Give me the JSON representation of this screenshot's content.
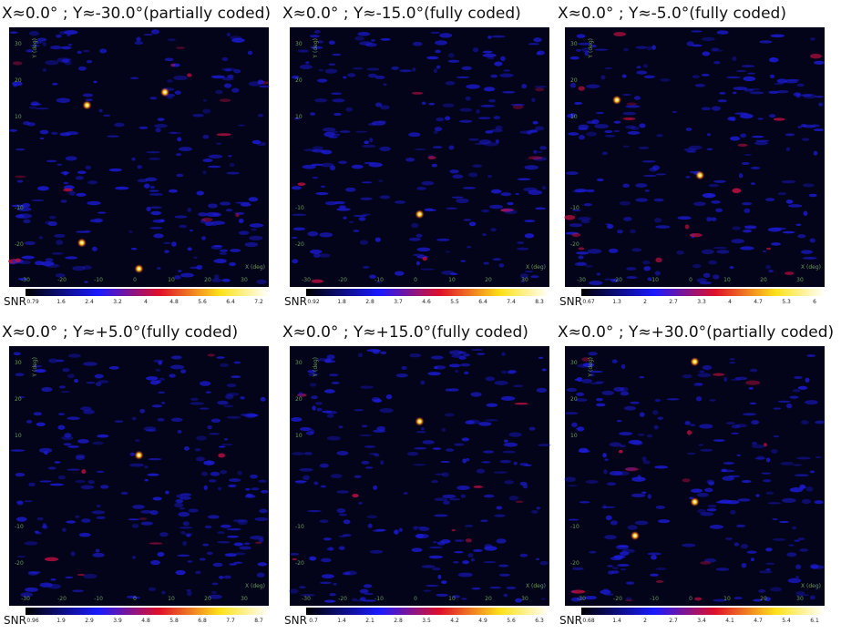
{
  "panels": [
    {
      "title": "X≈0.0° ; Y≈-30.0°(partially coded)",
      "colorbar": [
        "0.79",
        "1.6",
        "2.4",
        "3.2",
        "4",
        "4.8",
        "5.6",
        "6.4",
        "7.2"
      ]
    },
    {
      "title": "X≈0.0° ; Y≈-15.0°(fully coded)",
      "colorbar": [
        "0.92",
        "1.8",
        "2.8",
        "3.7",
        "4.6",
        "5.5",
        "6.4",
        "7.4",
        "8.3"
      ]
    },
    {
      "title": "X≈0.0° ; Y≈-5.0°(fully coded)",
      "colorbar": [
        "0.67",
        "1.3",
        "2",
        "2.7",
        "3.3",
        "4",
        "4.7",
        "5.3",
        "6"
      ]
    },
    {
      "title": "X≈0.0° ; Y≈+5.0°(fully coded)",
      "colorbar": [
        "0.96",
        "1.9",
        "2.9",
        "3.9",
        "4.8",
        "5.8",
        "6.8",
        "7.7",
        "8.7"
      ]
    },
    {
      "title": "X≈0.0° ; Y≈+15.0°(fully coded)",
      "colorbar": [
        "0.7",
        "1.4",
        "2.1",
        "2.8",
        "3.5",
        "4.2",
        "4.9",
        "5.6",
        "6.3"
      ]
    },
    {
      "title": "X≈0.0° ; Y≈+30.0°(partially coded)",
      "colorbar": [
        "0.68",
        "1.4",
        "2",
        "2.7",
        "3.4",
        "4.1",
        "4.7",
        "5.4",
        "6.1"
      ]
    }
  ],
  "colorbar_label": "SNR",
  "x_axis": {
    "label": "X (deg)",
    "ticks": [
      "-30",
      "-20",
      "-10",
      "0",
      "10",
      "20",
      "30"
    ]
  },
  "y_axis": {
    "label": "Y (deg)",
    "ticks": [
      "30",
      "20",
      "10",
      "-10",
      "-20"
    ]
  }
}
